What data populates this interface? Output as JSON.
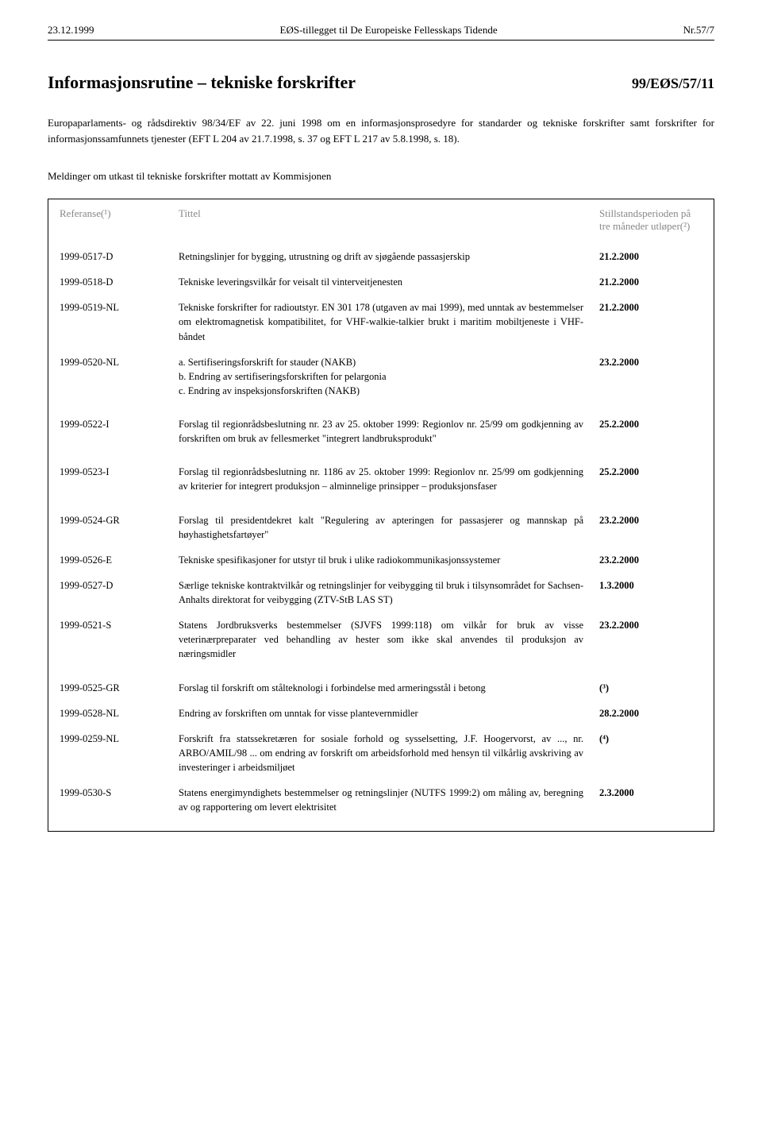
{
  "header": {
    "date": "23.12.1999",
    "center": "EØS-tillegget til De Europeiske Fellesskaps Tidende",
    "pageno": "Nr.57/7"
  },
  "title": "Informasjonsrutine – tekniske forskrifter",
  "title_ref": "99/EØS/57/11",
  "intro": "Europaparlaments- og rådsdirektiv 98/34/EF av 22. juni 1998 om en informasjonsprosedyre for standarder og tekniske forskrifter samt forskrifter for informasjonssamfunnets tjenester (EFT L 204 av 21.7.1998, s. 37 og EFT L 217 av 5.8.1998, s. 18).",
  "subheading": "Meldinger om utkast til tekniske forskrifter mottatt av Kommisjonen",
  "table": {
    "columns": {
      "ref": "Referanse(¹)",
      "title": "Tittel",
      "date": "Stillstandsperioden på tre måneder utløper(²)"
    },
    "rows": [
      {
        "ref": "1999-0517-D",
        "title": "Retningslinjer for bygging, utrustning og drift av sjøgående passasjerskip",
        "date": "21.2.2000"
      },
      {
        "ref": "1999-0518-D",
        "title": "Tekniske leveringsvilkår for veisalt til vinterveitjenesten",
        "date": "21.2.2000"
      },
      {
        "ref": "1999-0519-NL",
        "title": "Tekniske forskrifter for radioutstyr. EN 301 178 (utgaven av mai 1999), med unntak av bestemmelser om elektromagnetisk kompatibilitet, for VHF-walkie-talkier brukt i maritim mobiltjeneste i VHF-båndet",
        "date": "21.2.2000"
      },
      {
        "ref": "1999-0520-NL",
        "title": "a. Sertifiseringsforskrift for stauder (NAKB)\nb. Endring av sertifiseringsforskriften for pelargonia\nc. Endring av inspeksjonsforskriften (NAKB)",
        "date": "23.2.2000",
        "gap_after": true
      },
      {
        "ref": "1999-0522-I",
        "title": "Forslag til regionrådsbeslutning nr. 23 av 25. oktober 1999: Regionlov nr. 25/99 om godkjenning av forskriften om bruk av fellesmerket \"integrert landbruksprodukt\"",
        "date": "25.2.2000",
        "gap_after": true
      },
      {
        "ref": "1999-0523-I",
        "title": "Forslag til regionrådsbeslutning nr. 1186 av 25. oktober 1999: Regionlov nr. 25/99 om godkjenning av kriterier for integrert produksjon – alminnelige prinsipper – produksjonsfaser",
        "date": "25.2.2000",
        "gap_after": true
      },
      {
        "ref": "1999-0524-GR",
        "title": "Forslag til presidentdekret kalt \"Regulering av apteringen for passasjerer og mannskap på høyhastighetsfartøyer\"",
        "date": "23.2.2000"
      },
      {
        "ref": "1999-0526-E",
        "title": "Tekniske spesifikasjoner for utstyr til bruk i ulike radiokommunikasjonssystemer",
        "date": "23.2.2000"
      },
      {
        "ref": "1999-0527-D",
        "title": "Særlige tekniske kontraktvilkår og retningslinjer for veibygging til bruk i tilsynsområdet for Sachsen-Anhalts direktorat for veibygging (ZTV-StB LAS ST)",
        "date": "1.3.2000"
      },
      {
        "ref": "1999-0521-S",
        "title": "Statens Jordbruksverks bestemmelser (SJVFS 1999:118) om vilkår for bruk av visse veterinærpreparater ved behandling av hester som ikke skal anvendes til produksjon av næringsmidler",
        "date": "23.2.2000",
        "gap_after": true
      },
      {
        "ref": "1999-0525-GR",
        "title": "Forslag til forskrift om stålteknologi i forbindelse med armeringsstål i betong",
        "date": "(³)"
      },
      {
        "ref": "1999-0528-NL",
        "title": "Endring av forskriften om unntak for visse plantevernmidler",
        "date": "28.2.2000"
      },
      {
        "ref": "1999-0259-NL",
        "title": "Forskrift fra statssekretæren for sosiale forhold og sysselsetting, J.F. Hoogervorst, av ..., nr. ARBO/AMIL/98 ... om endring av forskrift om arbeidsforhold med hensyn til vilkårlig avskriving av investeringer i arbeidsmiljøet",
        "date": "(⁴)"
      },
      {
        "ref": "1999-0530-S",
        "title": "Statens energimyndighets bestemmelser og retningslinjer (NUTFS 1999:2) om måling av, beregning av og rapportering om levert elektrisitet",
        "date": "2.3.2000"
      }
    ]
  }
}
